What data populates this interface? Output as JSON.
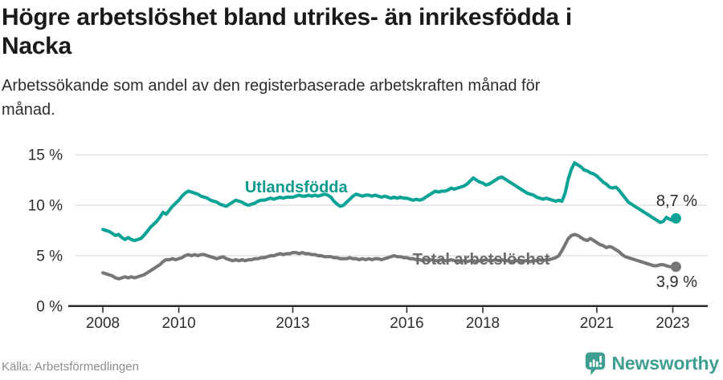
{
  "header": {
    "title": "Högre arbetslöshet bland utrikes- än inrikesfödda i\nNacka",
    "subtitle": "Arbetssökande som andel av den registerbaserade arbetskraften månad för\nmånad."
  },
  "footer": {
    "source": "Källa: Arbetsförmedlingen",
    "brand": "Newsworthy"
  },
  "colors": {
    "teal_line": "#0aa396",
    "teal_label": "#0a9b8e",
    "gray_line": "#767676",
    "gray_label": "#6b6b6b",
    "grid": "#dedede",
    "axis": "#2b2b2b",
    "brand_teal": "#3f9e92"
  },
  "chart_data": {
    "type": "line",
    "x_start_year": 2008,
    "x_months_step": 1,
    "x_end_label": "2023-02",
    "ylim": [
      0,
      15.8
    ],
    "xlim": [
      2007.3,
      2023.95
    ],
    "grid": "horizontal",
    "legend_position": "inline-labels",
    "y_ticks": [
      {
        "v": 0,
        "label": "0 %"
      },
      {
        "v": 5,
        "label": "5 %"
      },
      {
        "v": 10,
        "label": "10 %"
      },
      {
        "v": 15,
        "label": "15 %"
      }
    ],
    "x_ticks": [
      {
        "v": 2008,
        "label": "2008"
      },
      {
        "v": 2010,
        "label": "2010"
      },
      {
        "v": 2013,
        "label": "2013"
      },
      {
        "v": 2016,
        "label": "2016"
      },
      {
        "v": 2018,
        "label": "2018"
      },
      {
        "v": 2021,
        "label": "2021"
      },
      {
        "v": 2023,
        "label": "2023"
      }
    ],
    "series": [
      {
        "name": "Utlandsfödda",
        "slug": "utlandsfodda",
        "color": "#0aa396",
        "label_color": "#0a9b8e",
        "label_at": {
          "year": 2013.09,
          "pct": 11.27
        },
        "end_label": "8,7 %",
        "end_label_side": "above",
        "values": [
          7.6,
          7.5,
          7.4,
          7.2,
          7.0,
          7.1,
          6.8,
          6.6,
          6.8,
          6.6,
          6.5,
          6.6,
          6.7,
          7.0,
          7.4,
          7.8,
          8.1,
          8.4,
          8.8,
          9.3,
          9.1,
          9.5,
          9.9,
          10.2,
          10.5,
          10.9,
          11.2,
          11.4,
          11.3,
          11.2,
          11.1,
          10.9,
          10.8,
          10.7,
          10.5,
          10.4,
          10.3,
          10.1,
          10.0,
          9.9,
          10.1,
          10.3,
          10.5,
          10.4,
          10.3,
          10.1,
          10.0,
          10.1,
          10.2,
          10.4,
          10.5,
          10.5,
          10.6,
          10.7,
          10.6,
          10.7,
          10.8,
          10.7,
          10.8,
          10.8,
          10.8,
          10.9,
          11.0,
          10.9,
          10.9,
          11.0,
          10.9,
          11.0,
          10.9,
          11.0,
          11.1,
          11.0,
          10.8,
          10.4,
          10.1,
          9.9,
          10.0,
          10.3,
          10.6,
          10.9,
          11.1,
          11.0,
          10.9,
          11.0,
          11.0,
          10.9,
          11.0,
          10.9,
          10.8,
          10.9,
          10.8,
          10.7,
          10.8,
          10.7,
          10.8,
          10.7,
          10.7,
          10.6,
          10.5,
          10.6,
          10.5,
          10.6,
          10.8,
          11.0,
          11.2,
          11.4,
          11.3,
          11.4,
          11.4,
          11.5,
          11.7,
          11.6,
          11.7,
          11.8,
          11.9,
          12.1,
          12.4,
          12.7,
          12.5,
          12.3,
          12.2,
          12.0,
          12.1,
          12.3,
          12.5,
          12.7,
          12.8,
          12.6,
          12.4,
          12.2,
          12.0,
          11.8,
          11.6,
          11.4,
          11.2,
          11.1,
          11.0,
          10.8,
          10.7,
          10.6,
          10.7,
          10.6,
          10.5,
          10.4,
          10.5,
          10.4,
          11.2,
          12.6,
          13.6,
          14.2,
          14.0,
          13.8,
          13.5,
          13.4,
          13.2,
          13.1,
          12.9,
          12.6,
          12.3,
          12.1,
          11.8,
          11.7,
          11.8,
          11.5,
          11.1,
          10.7,
          10.3,
          10.1,
          9.9,
          9.7,
          9.5,
          9.3,
          9.1,
          8.9,
          8.7,
          8.5,
          8.3,
          8.4,
          8.8,
          8.6,
          8.5,
          8.7
        ]
      },
      {
        "name": "Total arbetslöshet",
        "slug": "total-arbetsloshet",
        "color": "#767676",
        "label_color": "#6b6b6b",
        "label_at": {
          "year": 2017.96,
          "pct": 4.12
        },
        "end_label": "3,9 %",
        "end_label_side": "below",
        "values": [
          3.3,
          3.2,
          3.1,
          3.0,
          2.8,
          2.7,
          2.8,
          2.9,
          2.8,
          2.9,
          2.8,
          2.9,
          3.0,
          3.1,
          3.3,
          3.5,
          3.7,
          3.9,
          4.1,
          4.4,
          4.6,
          4.6,
          4.7,
          4.6,
          4.7,
          4.8,
          5.0,
          5.1,
          5.0,
          5.1,
          5.0,
          5.1,
          5.1,
          5.0,
          4.9,
          4.8,
          4.7,
          4.8,
          4.9,
          4.7,
          4.6,
          4.5,
          4.6,
          4.5,
          4.6,
          4.5,
          4.6,
          4.6,
          4.7,
          4.7,
          4.8,
          4.8,
          4.9,
          5.0,
          5.0,
          5.1,
          5.2,
          5.1,
          5.2,
          5.2,
          5.3,
          5.3,
          5.2,
          5.3,
          5.2,
          5.2,
          5.1,
          5.1,
          5.0,
          5.0,
          4.9,
          4.9,
          4.9,
          4.8,
          4.8,
          4.7,
          4.7,
          4.7,
          4.8,
          4.7,
          4.7,
          4.6,
          4.7,
          4.6,
          4.7,
          4.6,
          4.7,
          4.7,
          4.6,
          4.7,
          4.8,
          4.9,
          5.0,
          4.9,
          4.9,
          4.8,
          4.8,
          4.7,
          4.7,
          4.6,
          4.6,
          4.5,
          4.6,
          4.5,
          4.6,
          4.5,
          4.5,
          4.6,
          4.5,
          4.5,
          4.6,
          4.5,
          4.5,
          4.4,
          4.5,
          4.4,
          4.5,
          4.5,
          4.4,
          4.5,
          4.5,
          4.6,
          4.5,
          4.5,
          4.6,
          4.5,
          4.6,
          4.5,
          4.5,
          4.4,
          4.5,
          4.5,
          4.4,
          4.5,
          4.5,
          4.4,
          4.5,
          4.5,
          4.6,
          4.5,
          4.6,
          4.6,
          4.7,
          4.8,
          5.0,
          5.5,
          6.1,
          6.7,
          7.0,
          7.1,
          7.0,
          6.8,
          6.6,
          6.5,
          6.7,
          6.5,
          6.3,
          6.1,
          6.0,
          5.8,
          5.9,
          5.8,
          5.6,
          5.4,
          5.1,
          4.9,
          4.8,
          4.7,
          4.6,
          4.5,
          4.4,
          4.3,
          4.2,
          4.1,
          4.0,
          4.0,
          4.1,
          4.1,
          4.0,
          3.9,
          3.9,
          3.9
        ]
      }
    ]
  }
}
